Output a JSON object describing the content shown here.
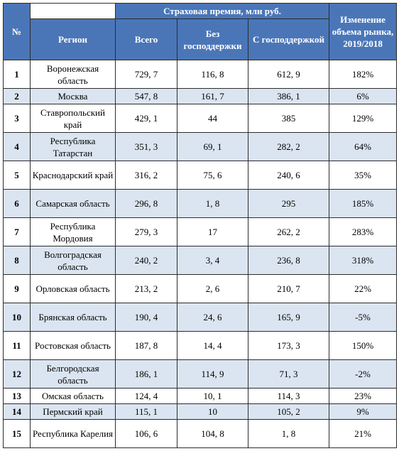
{
  "table": {
    "headers": {
      "number": "№",
      "region": "Регион",
      "premium_group": "Страховая премия, млн руб.",
      "total": "Всего",
      "without_support": "Без господдержки",
      "with_support": "С господдержкой",
      "market_change": "Изменение объема рынка, 2019/2018"
    },
    "rows": [
      {
        "n": "1",
        "region": "Воронежская область",
        "total": "729, 7",
        "without": "116, 8",
        "with": "612, 9",
        "change": "182%"
      },
      {
        "n": "2",
        "region": "Москва",
        "total": "547, 8",
        "without": "161, 7",
        "with": "386, 1",
        "change": "6%"
      },
      {
        "n": "3",
        "region": "Ставропольский край",
        "total": "429, 1",
        "without": "44",
        "with": "385",
        "change": "129%"
      },
      {
        "n": "4",
        "region": "Республика Татарстан",
        "total": "351, 3",
        "without": "69, 1",
        "with": "282, 2",
        "change": "64%"
      },
      {
        "n": "5",
        "region": "Краснодарский край",
        "total": "316, 2",
        "without": "75, 6",
        "with": "240, 6",
        "change": "35%"
      },
      {
        "n": "6",
        "region": "Самарская область",
        "total": "296, 8",
        "without": "1, 8",
        "with": "295",
        "change": "185%"
      },
      {
        "n": "7",
        "region": "Республика Мордовия",
        "total": "279, 3",
        "without": "17",
        "with": "262, 2",
        "change": "283%"
      },
      {
        "n": "8",
        "region": "Волгоградская область",
        "total": "240, 2",
        "without": "3, 4",
        "with": "236, 8",
        "change": "318%"
      },
      {
        "n": "9",
        "region": "Орловская область",
        "total": "213, 2",
        "without": "2, 6",
        "with": "210, 7",
        "change": "22%"
      },
      {
        "n": "10",
        "region": "Брянская область",
        "total": "190, 4",
        "without": "24, 6",
        "with": "165, 9",
        "change": "-5%"
      },
      {
        "n": "11",
        "region": "Ростовская область",
        "total": "187, 8",
        "without": "14, 4",
        "with": "173, 3",
        "change": "150%"
      },
      {
        "n": "12",
        "region": "Белгородская область",
        "total": "186, 1",
        "without": "114, 9",
        "with": "71, 3",
        "change": "-2%"
      },
      {
        "n": "13",
        "region": "Омская область",
        "total": "124, 4",
        "without": "10, 1",
        "with": "114, 3",
        "change": "23%"
      },
      {
        "n": "14",
        "region": "Пермский край",
        "total": "115, 1",
        "without": "10",
        "with": "105, 2",
        "change": "9%"
      },
      {
        "n": "15",
        "region": "Республика Карелия",
        "total": "106, 6",
        "without": "104, 8",
        "with": "1, 8",
        "change": "21%"
      }
    ],
    "colors": {
      "header_bg": "#4a76b8",
      "shade_bg": "#dbe5f1",
      "border": "#2c2c2c"
    }
  }
}
